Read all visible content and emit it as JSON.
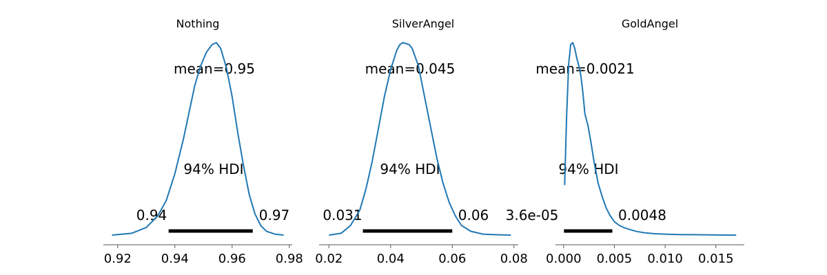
{
  "chart_data": [
    {
      "type": "line",
      "title": "Nothing",
      "xlim": [
        0.915,
        0.981
      ],
      "xticks": [
        0.92,
        0.94,
        0.96,
        0.98
      ],
      "xtick_labels": [
        "0.92",
        "0.94",
        "0.96",
        "0.98"
      ],
      "mean_label": "mean=0.95",
      "hdi_label": "94% HDI",
      "hdi": [
        0.9378,
        0.9672
      ],
      "hdi_low_label": "0.94",
      "hdi_high_label": "0.97",
      "color": "#1f77b4",
      "x": [
        0.918,
        0.925,
        0.93,
        0.934,
        0.937,
        0.94,
        0.943,
        0.945,
        0.947,
        0.949,
        0.951,
        0.953,
        0.9545,
        0.956,
        0.958,
        0.96,
        0.962,
        0.964,
        0.966,
        0.968,
        0.97,
        0.972,
        0.975,
        0.978
      ],
      "y": [
        0.0,
        0.01,
        0.04,
        0.1,
        0.18,
        0.32,
        0.5,
        0.64,
        0.78,
        0.88,
        0.95,
        0.99,
        1.0,
        0.97,
        0.87,
        0.72,
        0.53,
        0.36,
        0.21,
        0.11,
        0.05,
        0.02,
        0.005,
        0.0
      ]
    },
    {
      "type": "line",
      "title": "SilverAngel",
      "xlim": [
        0.0168,
        0.0814
      ],
      "xticks": [
        0.02,
        0.04,
        0.06,
        0.08
      ],
      "xtick_labels": [
        "0.02",
        "0.04",
        "0.06",
        "0.08"
      ],
      "mean_label": "mean=0.045",
      "hdi_label": "94% HDI",
      "hdi": [
        0.031,
        0.06
      ],
      "hdi_low_label": "0.031",
      "hdi_high_label": "0.06",
      "color": "#1f77b4",
      "x": [
        0.02,
        0.024,
        0.027,
        0.03,
        0.032,
        0.034,
        0.036,
        0.038,
        0.04,
        0.042,
        0.043,
        0.044,
        0.046,
        0.047,
        0.049,
        0.051,
        0.053,
        0.055,
        0.057,
        0.059,
        0.061,
        0.063,
        0.066,
        0.07,
        0.074,
        0.079
      ],
      "y": [
        0.0,
        0.01,
        0.05,
        0.13,
        0.24,
        0.38,
        0.55,
        0.72,
        0.86,
        0.96,
        0.99,
        1.0,
        0.99,
        0.97,
        0.88,
        0.72,
        0.56,
        0.4,
        0.27,
        0.17,
        0.1,
        0.05,
        0.02,
        0.005,
        0.002,
        0.0
      ]
    },
    {
      "type": "line",
      "title": "GoldAngel",
      "xlim": [
        -0.0008,
        0.0178
      ],
      "xticks": [
        0.0,
        0.005,
        0.01,
        0.015
      ],
      "xtick_labels": [
        "0.000",
        "0.005",
        "0.010",
        "0.015"
      ],
      "mean_label": "mean=0.0021",
      "hdi_label": "94% HDI",
      "hdi": [
        3.6e-05,
        0.0048
      ],
      "hdi_low_label": "3.6e-05",
      "hdi_high_label": "0.0048",
      "color": "#1f77b4",
      "x": [
        0.0001,
        0.0003,
        0.0005,
        0.0007,
        0.0009,
        0.0011,
        0.0013,
        0.0015,
        0.0017,
        0.0019,
        0.0021,
        0.0024,
        0.0027,
        0.003,
        0.0034,
        0.0038,
        0.0042,
        0.0046,
        0.005,
        0.0055,
        0.006,
        0.0066,
        0.0072,
        0.008,
        0.009,
        0.01,
        0.0115,
        0.013,
        0.015,
        0.017
      ],
      "y": [
        0.26,
        0.62,
        0.89,
        0.99,
        1.0,
        0.97,
        0.92,
        0.88,
        0.83,
        0.74,
        0.63,
        0.57,
        0.48,
        0.38,
        0.27,
        0.2,
        0.14,
        0.1,
        0.07,
        0.05,
        0.038,
        0.028,
        0.019,
        0.012,
        0.007,
        0.005,
        0.003,
        0.002,
        0.001,
        0.0
      ]
    }
  ]
}
